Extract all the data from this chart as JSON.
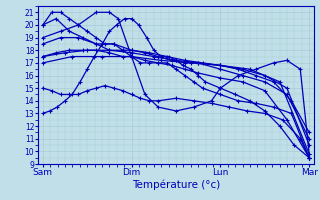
{
  "xlabel": "Température (°c)",
  "bg_color": "#c0dfe8",
  "grid_color": "#a8ccd4",
  "line_color": "#0000bb",
  "ylim": [
    9,
    21.5
  ],
  "yticks": [
    9,
    10,
    11,
    12,
    13,
    14,
    15,
    16,
    17,
    18,
    19,
    20,
    21
  ],
  "xtick_labels": [
    "Sam",
    "Dim",
    "Lun",
    "Mar"
  ],
  "xtick_positions": [
    0,
    1,
    2,
    3
  ],
  "detailed_series": [
    {
      "x": [
        0,
        0.08,
        0.16,
        0.25,
        0.33,
        0.42,
        0.5,
        0.58,
        0.67,
        0.75,
        0.83,
        0.92,
        1.0,
        1.08,
        1.17,
        1.25,
        1.33,
        1.42,
        1.5,
        1.58,
        1.67,
        1.75,
        1.83,
        2.0,
        2.17,
        2.33,
        2.5,
        2.67,
        2.83,
        3.0
      ],
      "y": [
        13.0,
        13.2,
        13.5,
        14.0,
        14.5,
        15.5,
        16.5,
        17.5,
        18.5,
        19.5,
        20.0,
        20.5,
        20.5,
        20.0,
        19.0,
        18.0,
        17.5,
        17.5,
        17.2,
        16.8,
        16.5,
        16.0,
        15.5,
        15.0,
        14.5,
        14.0,
        13.2,
        12.0,
        10.5,
        9.5
      ]
    },
    {
      "x": [
        0,
        0.1,
        0.2,
        0.3,
        0.4,
        0.5,
        0.6,
        0.7,
        0.8,
        0.9,
        1.0,
        1.1,
        1.2,
        1.3,
        1.4,
        1.5,
        1.6,
        1.7,
        1.8,
        2.0,
        2.2,
        2.4,
        2.6,
        2.8,
        3.0
      ],
      "y": [
        20.0,
        21.0,
        21.0,
        20.5,
        20.0,
        19.5,
        19.0,
        18.5,
        18.5,
        18.0,
        17.5,
        17.0,
        17.0,
        17.0,
        17.0,
        16.5,
        16.0,
        15.5,
        15.0,
        14.5,
        14.0,
        13.8,
        13.5,
        13.0,
        9.5
      ]
    },
    {
      "x": [
        0,
        0.15,
        0.3,
        0.45,
        0.6,
        0.75,
        0.9,
        1.0,
        1.15,
        1.3,
        1.45,
        1.6,
        1.75,
        2.0,
        2.25,
        2.5,
        2.75,
        3.0
      ],
      "y": [
        20.0,
        20.5,
        19.5,
        19.0,
        18.5,
        18.0,
        18.0,
        18.0,
        17.8,
        17.5,
        17.2,
        17.0,
        17.0,
        16.5,
        16.0,
        15.5,
        14.5,
        11.0
      ]
    },
    {
      "x": [
        0,
        0.2,
        0.4,
        0.6,
        0.8,
        1.0,
        1.2,
        1.4,
        1.6,
        1.8,
        2.0,
        2.2,
        2.4,
        2.6,
        2.8,
        3.0
      ],
      "y": [
        18.5,
        19.0,
        19.0,
        18.5,
        18.5,
        18.0,
        17.8,
        17.5,
        17.2,
        17.0,
        16.8,
        16.5,
        16.0,
        15.5,
        14.0,
        11.5
      ]
    },
    {
      "x": [
        0,
        0.25,
        0.5,
        0.75,
        1.0,
        1.25,
        1.5,
        1.75,
        2.0,
        2.25,
        2.5,
        2.75,
        3.0
      ],
      "y": [
        17.5,
        17.8,
        18.0,
        18.0,
        17.8,
        17.5,
        17.2,
        17.0,
        16.8,
        16.5,
        16.0,
        15.0,
        10.5
      ]
    },
    {
      "x": [
        0,
        0.33,
        0.67,
        1.0,
        1.33,
        1.67,
        2.0,
        2.33,
        2.67,
        3.0
      ],
      "y": [
        17.0,
        17.5,
        17.5,
        17.5,
        17.2,
        17.0,
        16.8,
        16.5,
        15.5,
        9.8
      ]
    },
    {
      "x": [
        0,
        0.1,
        0.2,
        0.3,
        0.4,
        0.5,
        0.6,
        0.7,
        0.8,
        0.9,
        1.0,
        1.1,
        1.2,
        1.3,
        1.5,
        1.7,
        1.9,
        2.1,
        2.3,
        2.5,
        2.7,
        2.9,
        3.0
      ],
      "y": [
        15.0,
        14.8,
        14.5,
        14.5,
        14.5,
        14.8,
        15.0,
        15.2,
        15.0,
        14.8,
        14.5,
        14.2,
        14.0,
        14.0,
        14.2,
        14.0,
        13.8,
        13.5,
        13.2,
        13.0,
        12.5,
        11.0,
        9.5
      ]
    },
    {
      "x": [
        0,
        0.2,
        0.4,
        0.6,
        0.75,
        0.85,
        1.0,
        1.15,
        1.3,
        1.5,
        1.7,
        1.9,
        2.0,
        2.2,
        2.4,
        2.6,
        2.75,
        2.9,
        3.0
      ],
      "y": [
        19.0,
        19.5,
        20.0,
        21.0,
        21.0,
        20.5,
        17.5,
        14.5,
        13.5,
        13.2,
        13.5,
        14.0,
        15.0,
        16.0,
        16.5,
        17.0,
        17.2,
        16.5,
        9.8
      ]
    },
    {
      "x": [
        0,
        0.15,
        0.3,
        0.45,
        0.6,
        0.75,
        0.9,
        1.0,
        1.15,
        1.3,
        1.45,
        1.6,
        1.75,
        2.0,
        2.25,
        2.5,
        2.75,
        3.0
      ],
      "y": [
        17.5,
        17.8,
        18.0,
        18.0,
        18.0,
        17.8,
        17.5,
        17.5,
        17.2,
        17.0,
        16.8,
        16.5,
        16.2,
        15.8,
        15.5,
        14.8,
        12.5,
        9.5
      ]
    }
  ]
}
